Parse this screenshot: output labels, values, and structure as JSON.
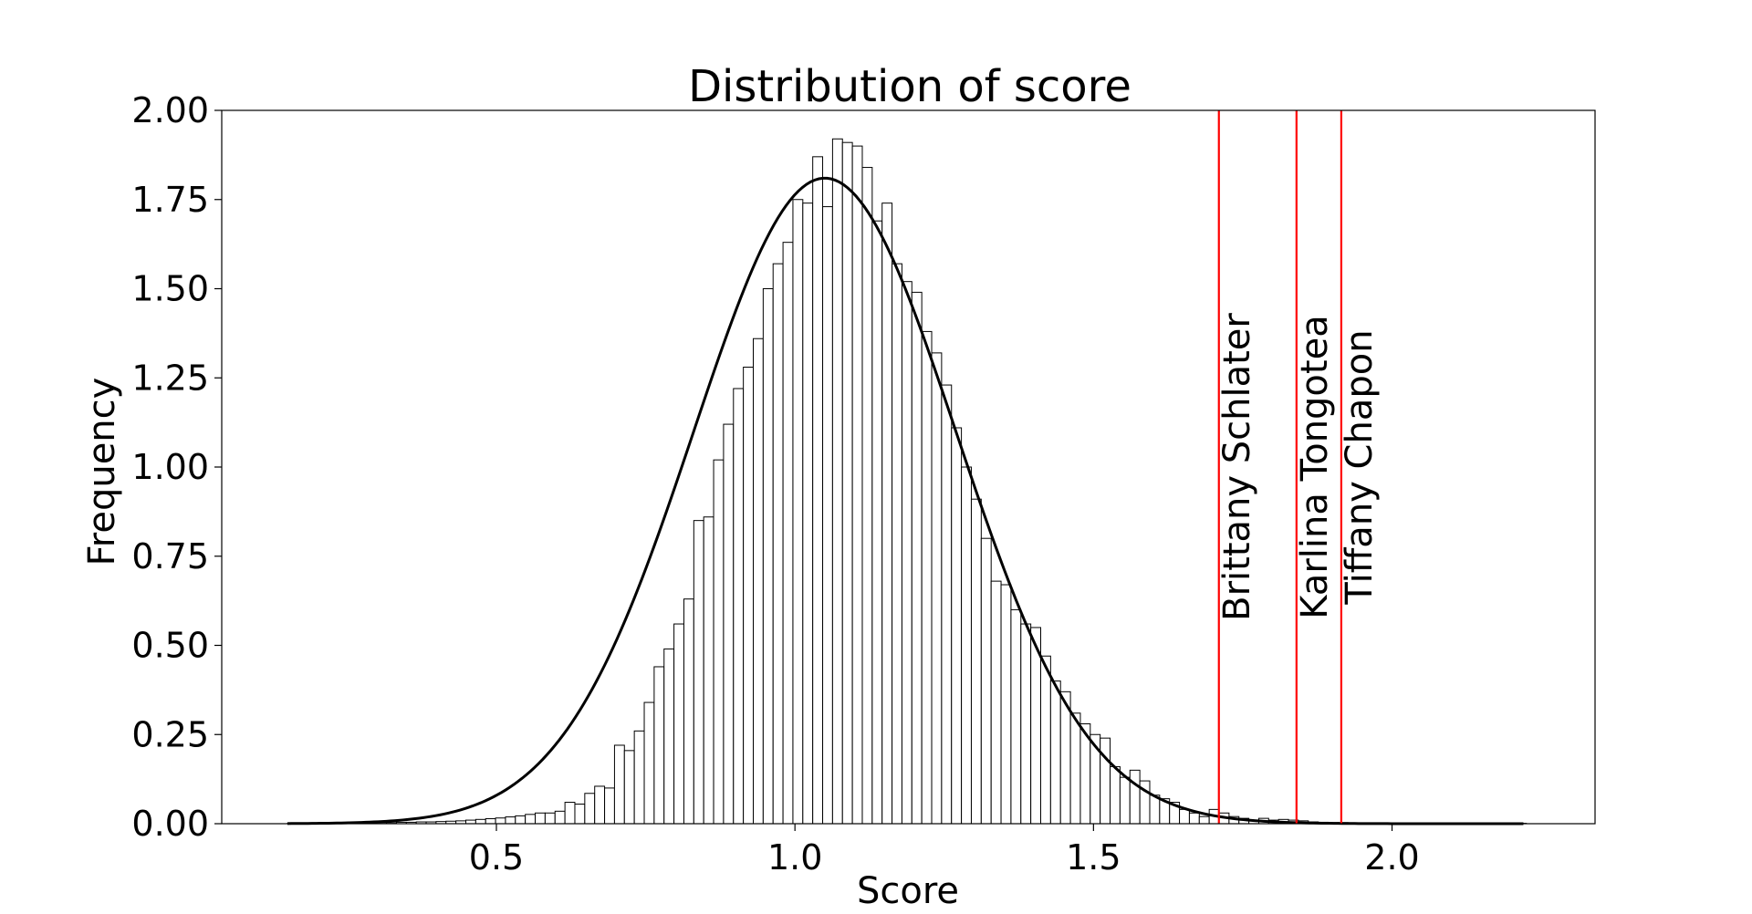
{
  "chart_data": {
    "type": "bar",
    "subtype": "histogram with fitted normal curve",
    "title": "Distribution of score",
    "xlabel": "Score",
    "ylabel": "Frequency",
    "xlim": [
      0.04,
      2.34
    ],
    "ylim": [
      0.0,
      2.0
    ],
    "xticks": [
      "0.5",
      "1.0",
      "1.5",
      "2.0"
    ],
    "xtick_values": [
      0.5,
      1.0,
      1.5,
      2.0
    ],
    "yticks": [
      "0.00",
      "0.25",
      "0.50",
      "0.75",
      "1.00",
      "1.25",
      "1.50",
      "1.75",
      "2.00"
    ],
    "ytick_values": [
      0.0,
      0.25,
      0.5,
      0.75,
      1.0,
      1.25,
      1.5,
      1.75,
      2.0
    ],
    "grid": false,
    "legend": "none",
    "bins": {
      "start": 0.15,
      "width": 0.0166,
      "counts": [
        0.001,
        0.001,
        0.001,
        0.001,
        0.001,
        0.001,
        0.002,
        0.002,
        0.002,
        0.003,
        0.003,
        0.004,
        0.004,
        0.005,
        0.005,
        0.006,
        0.007,
        0.008,
        0.01,
        0.012,
        0.014,
        0.016,
        0.019,
        0.022,
        0.026,
        0.03,
        0.03,
        0.035,
        0.06,
        0.055,
        0.085,
        0.105,
        0.1,
        0.22,
        0.205,
        0.26,
        0.34,
        0.44,
        0.49,
        0.56,
        0.63,
        0.85,
        0.86,
        1.02,
        1.12,
        1.22,
        1.28,
        1.36,
        1.5,
        1.57,
        1.63,
        1.75,
        1.74,
        1.87,
        1.73,
        1.92,
        1.91,
        1.9,
        1.84,
        1.69,
        1.74,
        1.57,
        1.52,
        1.49,
        1.38,
        1.32,
        1.23,
        1.11,
        1.0,
        0.91,
        0.8,
        0.68,
        0.67,
        0.6,
        0.56,
        0.55,
        0.47,
        0.4,
        0.37,
        0.31,
        0.28,
        0.25,
        0.24,
        0.16,
        0.13,
        0.15,
        0.12,
        0.08,
        0.07,
        0.06,
        0.04,
        0.03,
        0.02,
        0.04,
        0.03,
        0.02,
        0.015,
        0.01,
        0.015,
        0.01,
        0.012,
        0.01,
        0.008,
        0.005,
        0.004,
        0.003,
        0.003,
        0.002,
        0.002,
        0.002,
        0.001,
        0.001,
        0.001,
        0.001,
        0.001,
        0.001,
        0.001,
        0.001,
        0.001,
        0.001,
        0.001,
        0.001,
        0.001,
        0.001,
        0.001
      ]
    },
    "fit_curve": {
      "kind": "normal",
      "mean": 1.05,
      "std": 0.22,
      "x_range": [
        0.15,
        2.22
      ],
      "peak": 1.81
    },
    "vlines": [
      {
        "x": 1.71,
        "label": "Brittany Schlater",
        "color": "#ff0000"
      },
      {
        "x": 1.84,
        "label": "Karlina Tongotea",
        "color": "#ff0000"
      },
      {
        "x": 1.915,
        "label": "Tiffany Chapon",
        "color": "#ff0000"
      }
    ],
    "colors": {
      "bar_fill": "#ffffff",
      "bar_edge": "#000000",
      "curve": "#000000",
      "vline": "#ff0000"
    }
  }
}
